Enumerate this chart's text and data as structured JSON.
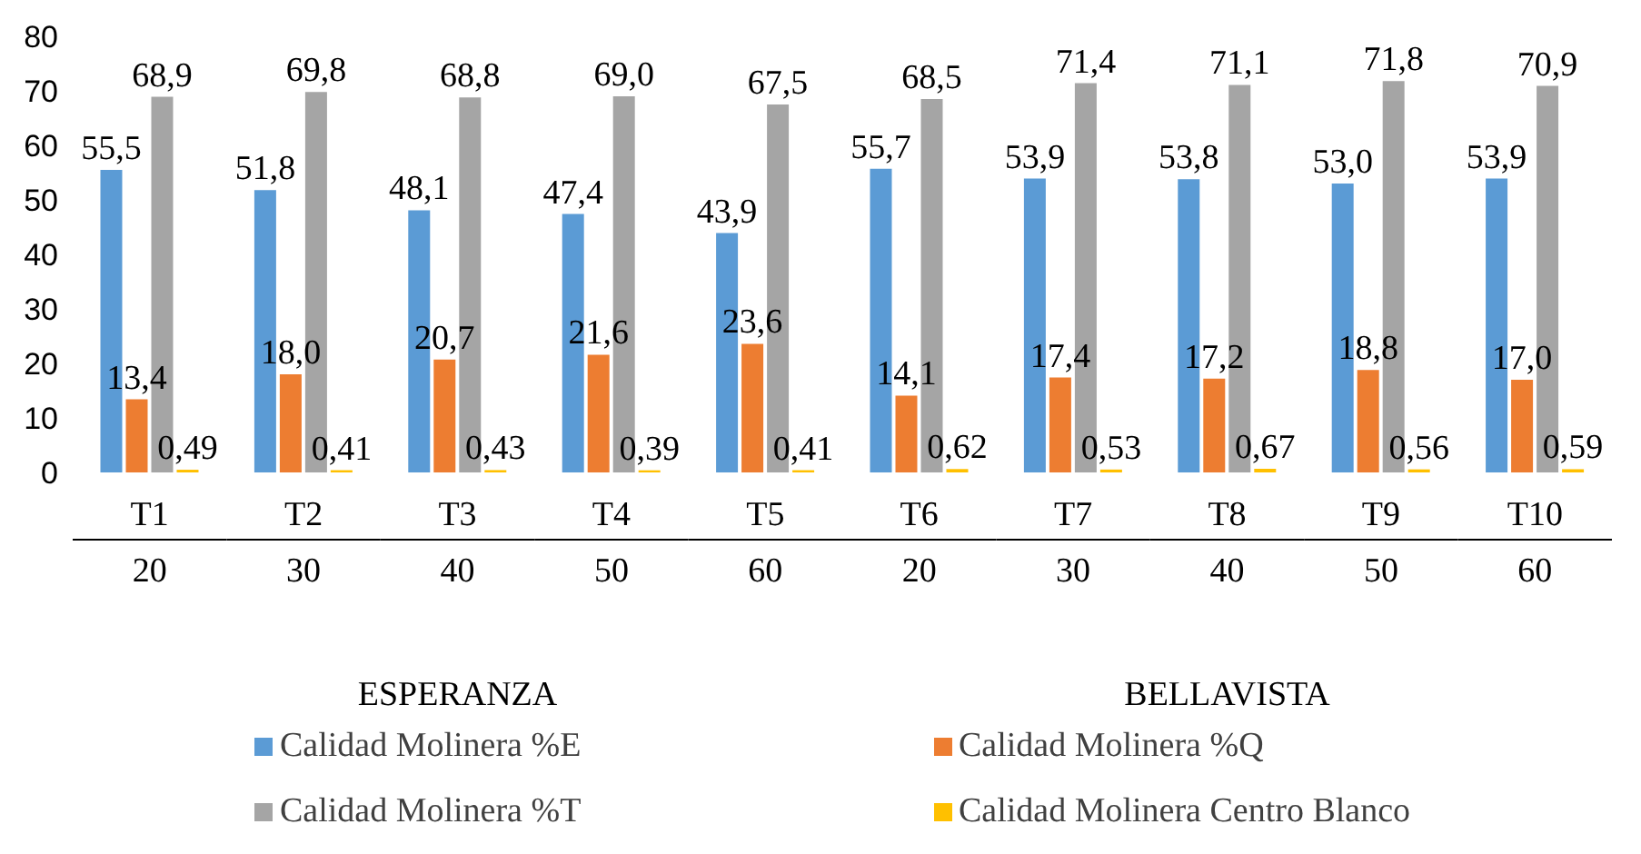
{
  "chart_data": {
    "type": "bar",
    "categories": [
      "T1",
      "T2",
      "T3",
      "T4",
      "T5",
      "T6",
      "T7",
      "T8",
      "T9",
      "T10"
    ],
    "series": [
      {
        "name": "Calidad Molinera %E",
        "color": "#5b9bd5",
        "values": [
          55.5,
          51.8,
          48.1,
          47.4,
          43.9,
          55.7,
          53.9,
          53.8,
          53.0,
          53.9
        ],
        "value_labels": [
          "55,5",
          "51,8",
          "48,1",
          "47,4",
          "43,9",
          "55,7",
          "53,9",
          "53,8",
          "53,0",
          "53,9"
        ]
      },
      {
        "name": "Calidad Molinera %Q",
        "color": "#ed7d31",
        "values": [
          13.4,
          18.0,
          20.7,
          21.6,
          23.6,
          14.1,
          17.4,
          17.2,
          18.8,
          17.0
        ],
        "value_labels": [
          "13,4",
          "18,0",
          "20,7",
          "21,6",
          "23,6",
          "14,1",
          "17,4",
          "17,2",
          "18,8",
          "17,0"
        ]
      },
      {
        "name": "Calidad Molinera %T",
        "color": "#a5a5a5",
        "values": [
          68.9,
          69.8,
          68.8,
          69.0,
          67.5,
          68.5,
          71.4,
          71.1,
          71.8,
          70.9
        ],
        "value_labels": [
          "68,9",
          "69,8",
          "68,8",
          "69,0",
          "67,5",
          "68,5",
          "71,4",
          "71,1",
          "71,8",
          "70,9"
        ]
      },
      {
        "name": "Calidad Molinera Centro Blanco",
        "color": "#ffc000",
        "values": [
          0.49,
          0.41,
          0.43,
          0.39,
          0.41,
          0.62,
          0.53,
          0.67,
          0.56,
          0.59
        ],
        "value_labels": [
          "0,49",
          "0,41",
          "0,43",
          "0,39",
          "0,41",
          "0,62",
          "0,53",
          "0,67",
          "0,56",
          "0,59"
        ]
      }
    ],
    "annotations": [
      "20",
      "30",
      "40",
      "50",
      "60",
      "20",
      "30",
      "40",
      "50",
      "60",
      "ESPERANZA",
      "BELLAVISTA"
    ],
    "ylim": [
      0,
      80
    ],
    "yticks": [
      0,
      10,
      20,
      30,
      40,
      50,
      60,
      70,
      80
    ],
    "grid": false,
    "legend": "bottom"
  }
}
